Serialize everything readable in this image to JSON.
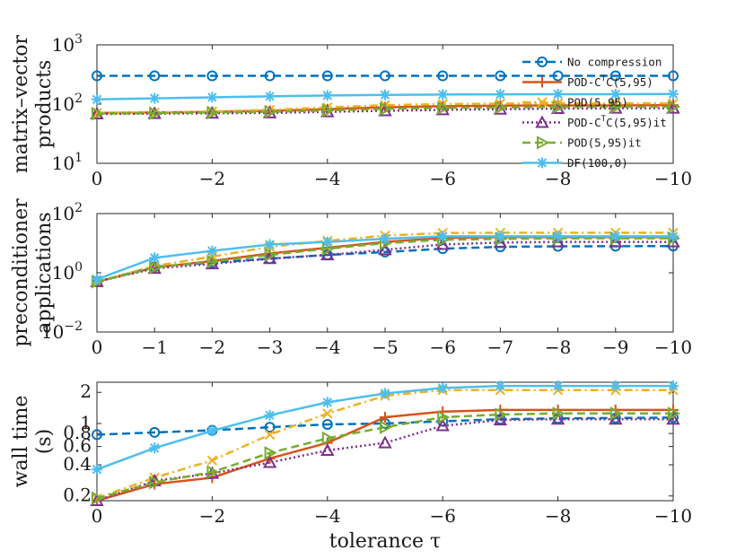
{
  "chart_data": [
    {
      "type": "line",
      "ylabel": [
        "matrix–vector",
        "products"
      ],
      "yscale": "log",
      "ylim": [
        10,
        1000
      ],
      "xlim": [
        0,
        -10
      ],
      "xticks": [
        0,
        -2,
        -4,
        -6,
        -8,
        -10
      ],
      "xticklabels": [
        "0",
        "−2",
        "−4",
        "−6",
        "−8",
        "−10"
      ],
      "yticks": [
        10,
        100,
        1000
      ],
      "yticklabels": [
        [
          "10",
          "1"
        ],
        [
          "10",
          "2"
        ],
        [
          "10",
          "3"
        ]
      ],
      "series": [
        {
          "key": "nocomp",
          "x": [
            0,
            -1,
            -2,
            -3,
            -4,
            -5,
            -6,
            -7,
            -8,
            -9,
            -10
          ],
          "values": [
            300,
            300,
            300,
            300,
            300,
            300,
            300,
            300,
            300,
            300,
            300
          ]
        },
        {
          "key": "podct",
          "x": [
            0,
            -1,
            -2,
            -3,
            -4,
            -5,
            -6,
            -7,
            -8,
            -9,
            -10
          ],
          "values": [
            71,
            72,
            74,
            77,
            82,
            88,
            92,
            94,
            95,
            95,
            96
          ]
        },
        {
          "key": "pod",
          "x": [
            0,
            -1,
            -2,
            -3,
            -4,
            -5,
            -6,
            -7,
            -8,
            -9,
            -10
          ],
          "values": [
            70,
            72,
            75,
            80,
            88,
            96,
            100,
            102,
            103,
            103,
            103
          ]
        },
        {
          "key": "podctit",
          "x": [
            0,
            -1,
            -2,
            -3,
            -4,
            -5,
            -6,
            -7,
            -8,
            -9,
            -10
          ],
          "values": [
            68,
            69,
            70,
            71,
            74,
            77,
            80,
            82,
            84,
            85,
            85
          ]
        },
        {
          "key": "podit",
          "x": [
            0,
            -1,
            -2,
            -3,
            -4,
            -5,
            -6,
            -7,
            -8,
            -9,
            -10
          ],
          "values": [
            69,
            70,
            72,
            74,
            78,
            83,
            86,
            88,
            89,
            90,
            90
          ]
        },
        {
          "key": "df",
          "x": [
            0,
            -1,
            -2,
            -3,
            -4,
            -5,
            -6,
            -7,
            -8,
            -9,
            -10
          ],
          "values": [
            120,
            125,
            130,
            135,
            140,
            143,
            145,
            146,
            147,
            147,
            148
          ]
        }
      ]
    },
    {
      "type": "line",
      "ylabel": [
        "preconditioner",
        "applications"
      ],
      "yscale": "log",
      "ylim": [
        0.01,
        100
      ],
      "xlim": [
        0,
        -10
      ],
      "xticks": [
        0,
        -1,
        -2,
        -3,
        -4,
        -5,
        -6,
        -7,
        -8,
        -9,
        -10
      ],
      "xticklabels": [
        "0",
        "−1",
        "−2",
        "−3",
        "−4",
        "−5",
        "−6",
        "−7",
        "−8",
        "−9",
        "−10"
      ],
      "yticks": [
        0.01,
        1,
        100
      ],
      "yticklabels": [
        [
          "10",
          "−2"
        ],
        [
          "10",
          "0"
        ],
        [
          "10",
          "2"
        ]
      ],
      "series": [
        {
          "key": "nocomp",
          "x": [
            0,
            -1,
            -2,
            -3,
            -4,
            -5,
            -6,
            -7,
            -8,
            -9,
            -10
          ],
          "values": [
            0.5,
            1.6,
            2.2,
            3.0,
            4.0,
            5.0,
            6.5,
            7.5,
            7.8,
            7.9,
            8.0
          ]
        },
        {
          "key": "podct",
          "x": [
            0,
            -1,
            -2,
            -3,
            -4,
            -5,
            -6,
            -7,
            -8,
            -9,
            -10
          ],
          "values": [
            0.5,
            1.5,
            2.5,
            4.5,
            7.0,
            11.0,
            15.0,
            16.0,
            16.0,
            16.0,
            16.0
          ]
        },
        {
          "key": "pod",
          "x": [
            0,
            -1,
            -2,
            -3,
            -4,
            -5,
            -6,
            -7,
            -8,
            -9,
            -10
          ],
          "values": [
            0.5,
            1.7,
            3.5,
            7.5,
            12.0,
            18.0,
            22.0,
            22.5,
            22.5,
            22.5,
            22.5
          ]
        },
        {
          "key": "podctit",
          "x": [
            0,
            -1,
            -2,
            -3,
            -4,
            -5,
            -6,
            -7,
            -8,
            -9,
            -10
          ],
          "values": [
            0.5,
            1.4,
            2.0,
            3.0,
            4.0,
            6.0,
            9.0,
            10.5,
            11.0,
            11.0,
            11.0
          ]
        },
        {
          "key": "podit",
          "x": [
            0,
            -1,
            -2,
            -3,
            -4,
            -5,
            -6,
            -7,
            -8,
            -9,
            -10
          ],
          "values": [
            0.5,
            1.5,
            2.4,
            4.0,
            6.5,
            10.0,
            13.0,
            14.0,
            14.5,
            14.5,
            14.5
          ]
        },
        {
          "key": "df",
          "x": [
            0,
            -1,
            -2,
            -3,
            -4,
            -5,
            -6,
            -7,
            -8,
            -9,
            -10
          ],
          "values": [
            0.6,
            3.2,
            5.5,
            9.0,
            11.0,
            14.0,
            17.0,
            17.0,
            17.0,
            17.0,
            17.0
          ]
        }
      ]
    },
    {
      "type": "line",
      "ylabel": [
        "wall time",
        "(s)"
      ],
      "xlabel": "tolerance τ",
      "yscale": "log",
      "ylim": [
        0.18,
        2.5
      ],
      "xlim": [
        0,
        -10
      ],
      "xticks": [
        0,
        -2,
        -4,
        -6,
        -8,
        -10
      ],
      "xticklabels": [
        "0",
        "−2",
        "−4",
        "−6",
        "−8",
        "−10"
      ],
      "yticks": [
        0.2,
        0.4,
        0.6,
        0.8,
        1,
        2
      ],
      "yticklabels": [
        [
          "0.2"
        ],
        [
          "0.4"
        ],
        [
          "0.6"
        ],
        [
          "0.8"
        ],
        [
          "1"
        ],
        [
          "2"
        ]
      ],
      "series": [
        {
          "key": "nocomp",
          "x": [
            0,
            -1,
            -2,
            -3,
            -4,
            -5,
            -6,
            -7,
            -8,
            -9,
            -10
          ],
          "values": [
            0.78,
            0.82,
            0.86,
            0.92,
            0.98,
            1.0,
            1.05,
            1.1,
            1.12,
            1.13,
            1.14
          ]
        },
        {
          "key": "podct",
          "x": [
            0,
            -1,
            -2,
            -3,
            -4,
            -5,
            -6,
            -7,
            -8,
            -9,
            -10
          ],
          "values": [
            0.18,
            0.26,
            0.3,
            0.46,
            0.65,
            1.15,
            1.3,
            1.35,
            1.35,
            1.35,
            1.35
          ]
        },
        {
          "key": "pod",
          "x": [
            0,
            -1,
            -2,
            -3,
            -4,
            -5,
            -6,
            -7,
            -8,
            -9,
            -10
          ],
          "values": [
            0.19,
            0.3,
            0.44,
            0.78,
            1.25,
            1.85,
            2.1,
            2.1,
            2.1,
            2.1,
            2.1
          ]
        },
        {
          "key": "podctit",
          "x": [
            0,
            -1,
            -2,
            -3,
            -4,
            -5,
            -6,
            -7,
            -8,
            -9,
            -10
          ],
          "values": [
            0.18,
            0.28,
            0.33,
            0.42,
            0.55,
            0.65,
            0.95,
            1.08,
            1.1,
            1.1,
            1.1
          ]
        },
        {
          "key": "podit",
          "x": [
            0,
            -1,
            -2,
            -3,
            -4,
            -5,
            -6,
            -7,
            -8,
            -9,
            -10
          ],
          "values": [
            0.19,
            0.27,
            0.34,
            0.52,
            0.72,
            0.92,
            1.15,
            1.22,
            1.25,
            1.25,
            1.25
          ]
        },
        {
          "key": "df",
          "x": [
            0,
            -1,
            -2,
            -3,
            -4,
            -5,
            -6,
            -7,
            -8,
            -9,
            -10
          ],
          "values": [
            0.36,
            0.58,
            0.85,
            1.2,
            1.6,
            1.95,
            2.2,
            2.3,
            2.3,
            2.3,
            2.3
          ]
        }
      ]
    }
  ],
  "legend": {
    "placement": "right of top panel",
    "entries": [
      {
        "key": "nocomp",
        "label": "No compression",
        "color": "#0072bd",
        "dash": "dashed",
        "marker": "circle"
      },
      {
        "key": "podct",
        "label": "POD-CTC(5,95)",
        "label_parts": [
          "POD-C",
          "T",
          "C(5,95)"
        ],
        "color": "#d95319",
        "dash": "solid",
        "marker": "plus"
      },
      {
        "key": "pod",
        "label": "POD(5,95)",
        "color": "#edb120",
        "dash": "dashdot",
        "marker": "x"
      },
      {
        "key": "podctit",
        "label": "POD-CTC(5,95)it",
        "label_parts": [
          "POD-C",
          "T",
          "C(5,95)it"
        ],
        "color": "#7e2f8e",
        "dash": "dotted",
        "marker": "triangle-up"
      },
      {
        "key": "podit",
        "label": "POD(5,95)it",
        "color": "#77ac30",
        "dash": "dashed",
        "marker": "triangle-right"
      },
      {
        "key": "df",
        "label": "DF(100,0)",
        "color": "#4dbeee",
        "dash": "solid",
        "marker": "asterisk"
      }
    ]
  }
}
